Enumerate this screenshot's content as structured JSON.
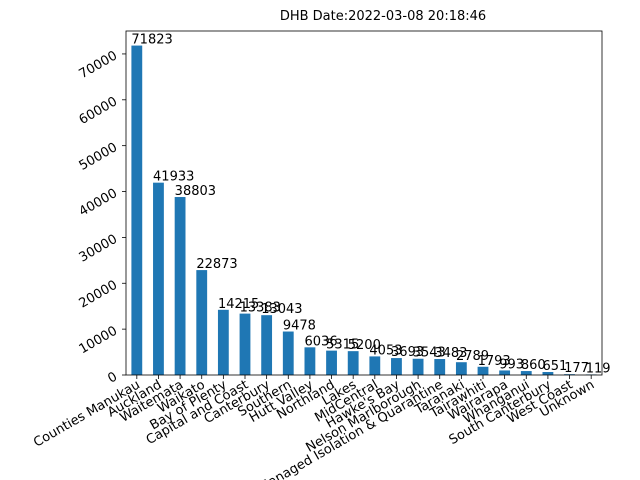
{
  "chart_data": {
    "type": "bar",
    "title": "DHB  Date:2022-03-08 20:18:46",
    "xlabel": "",
    "ylabel": "",
    "ylim": [
      0,
      75000
    ],
    "yticks": [
      0,
      10000,
      20000,
      30000,
      40000,
      50000,
      60000,
      70000
    ],
    "grid": false,
    "color": "#1f77b4",
    "categories": [
      "Counties Manukau",
      "Auckland",
      "Waitemata",
      "Waikato",
      "Bay of Plenty",
      "Capital and Coast",
      "Canterbury",
      "Southern",
      "Hutt Valley",
      "Northland",
      "Lakes",
      "MidCentral",
      "Hawke's Bay",
      "Nelson Marlborough",
      "Managed Isolation & Quarantine",
      "Taranaki",
      "Tairawhiti",
      "Wairarapa",
      "Whanganui",
      "South Canterbury",
      "West Coast",
      "Unknown"
    ],
    "values": [
      71823,
      41933,
      38803,
      22873,
      14215,
      13383,
      13043,
      9478,
      6036,
      5315,
      5200,
      4053,
      3693,
      3543,
      3483,
      2789,
      1793,
      993,
      860,
      651,
      177,
      119
    ]
  }
}
